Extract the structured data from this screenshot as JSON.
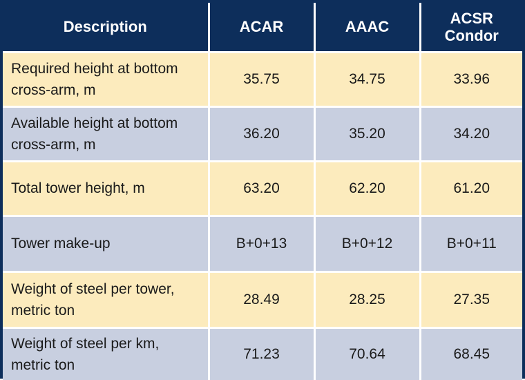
{
  "table": {
    "headers": [
      "Description",
      "ACAR",
      "AAAC",
      "ACSR Condor"
    ],
    "rows": [
      [
        "Required height at bottom cross-arm, m",
        "35.75",
        "34.75",
        "33.96"
      ],
      [
        "Available height at bottom cross-arm, m",
        "36.20",
        "35.20",
        "34.20"
      ],
      [
        "Total tower height, m",
        "63.20",
        "62.20",
        "61.20"
      ],
      [
        "Tower make-up",
        "B+0+13",
        "B+0+12",
        "B+0+11"
      ],
      [
        "Weight of steel per tower, metric ton",
        "28.49",
        "28.25",
        "27.35"
      ],
      [
        "Weight of steel per km, metric ton",
        "71.23",
        "70.64",
        "68.45"
      ]
    ]
  },
  "colors": {
    "header_bg": "#0d2e5b",
    "row_odd_bg": "#fcebbd",
    "row_even_bg": "#c8cfe0",
    "grid_lines": "#ffffff"
  }
}
